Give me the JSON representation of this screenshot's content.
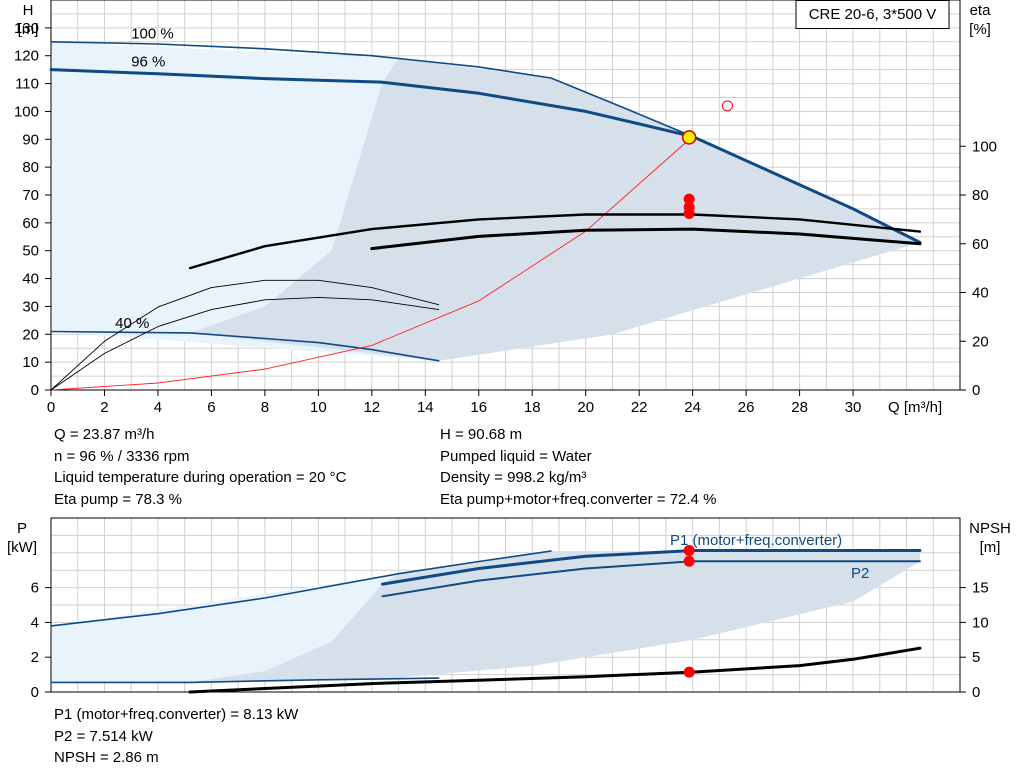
{
  "chart_data": [
    {
      "type": "line",
      "title": "CRE 20-6, 3*500 V",
      "xlabel": "Q [m³/h]",
      "ylabel": "H\n[m]",
      "y2label": "eta\n[%]",
      "xlim": [
        0,
        34
      ],
      "ylim": [
        0,
        140
      ],
      "y2lim": [
        0,
        160
      ],
      "xticks": [
        0,
        2,
        4,
        6,
        8,
        10,
        12,
        14,
        16,
        18,
        20,
        22,
        24,
        26,
        28,
        30
      ],
      "yticks": [
        0,
        10,
        20,
        30,
        40,
        50,
        60,
        70,
        80,
        90,
        100,
        110,
        120,
        130
      ],
      "y2ticks": [
        0,
        20,
        40,
        60,
        80,
        100
      ],
      "grid": true,
      "annotations": [
        {
          "text": "100 %",
          "x": 3,
          "y": 128
        },
        {
          "text": "96 %",
          "x": 3,
          "y": 118
        },
        {
          "text": "40 %",
          "x": 2.4,
          "y": 24
        }
      ],
      "operating_region": [
        [
          0,
          125
        ],
        [
          13,
          119
        ],
        [
          18.7,
          112
        ],
        [
          24,
          91
        ],
        [
          32.5,
          53
        ],
        [
          21,
          20
        ],
        [
          14.5,
          10.5
        ],
        [
          0,
          21
        ]
      ],
      "operating_region_shaded_part": [
        [
          12.4,
          110.5
        ],
        [
          13,
          119
        ],
        [
          18.7,
          112
        ],
        [
          24,
          91
        ],
        [
          32.5,
          53
        ],
        [
          21,
          20
        ],
        [
          14.5,
          10.5
        ],
        [
          5.2,
          20.5
        ],
        [
          8,
          30
        ],
        [
          10.5,
          50
        ]
      ],
      "series": [
        {
          "name": "",
          "role": "max-speed-head",
          "axis": "H",
          "x": [
            0,
            4,
            8,
            12,
            13,
            16,
            18.7,
            21,
            24,
            27,
            30,
            32.5
          ],
          "y": [
            125,
            124.2,
            122.5,
            120,
            119,
            116,
            112,
            103,
            91,
            78,
            65,
            53
          ]
        },
        {
          "name": "",
          "role": "96-speed-head",
          "axis": "H",
          "x": [
            0,
            4,
            8,
            12.4,
            16,
            20,
            24,
            27,
            30,
            32.5
          ],
          "y": [
            115,
            113.5,
            111.8,
            110.5,
            106.5,
            100,
            91,
            78,
            65,
            53
          ]
        },
        {
          "name": "",
          "role": "min-speed-head",
          "axis": "H",
          "x": [
            0,
            5.2,
            8,
            10,
            12,
            14.5
          ],
          "y": [
            21,
            20.5,
            18.5,
            17,
            14.5,
            10.5
          ]
        },
        {
          "name": "",
          "role": "system-curve",
          "axis": "H",
          "x": [
            0,
            4,
            8,
            12,
            16,
            20,
            24
          ],
          "y": [
            0,
            2.5,
            7.5,
            16,
            32,
            57,
            91
          ]
        },
        {
          "name": "",
          "role": "eta-pump",
          "axis": "eta",
          "x": [
            5.2,
            8,
            12,
            16,
            20,
            24,
            28,
            32.5
          ],
          "y": [
            50,
            59,
            66,
            70,
            72,
            72,
            70,
            65
          ]
        },
        {
          "name": "",
          "role": "eta-total",
          "axis": "eta",
          "x": [
            12,
            16,
            20,
            24,
            28,
            32.5
          ],
          "y": [
            58,
            63,
            65.5,
            66,
            64,
            60
          ]
        },
        {
          "name": "",
          "role": "eta-min-speed",
          "axis": "eta",
          "x": [
            0,
            2,
            4,
            6,
            8,
            10,
            12,
            14.5
          ],
          "y": [
            0,
            15,
            26,
            33,
            37,
            38,
            37,
            33
          ]
        },
        {
          "name": "",
          "role": "eta-low-speed",
          "axis": "eta",
          "x": [
            0,
            2,
            4,
            6,
            8,
            10,
            12,
            14.5
          ],
          "y": [
            0,
            20,
            34,
            42,
            45,
            45,
            42,
            35
          ]
        }
      ],
      "operating_point": {
        "x": 23.87,
        "y": 90.68
      },
      "operating_point_eta": [
        {
          "x": 23.87,
          "y": 78.3
        },
        {
          "x": 23.87,
          "y": 75
        },
        {
          "x": 23.87,
          "y": 72.4
        }
      ],
      "reference_marker": {
        "x": 25.3,
        "y": 102
      }
    },
    {
      "type": "line",
      "xlim": [
        0,
        34
      ],
      "ylim": [
        0,
        10
      ],
      "y2lim": [
        0,
        25
      ],
      "ylabel": "P\n[kW]",
      "y2label": "NPSH\n[m]",
      "yticks": [
        0,
        2,
        4,
        6
      ],
      "y2ticks": [
        0,
        5,
        10,
        15
      ],
      "grid": true,
      "operating_region": [
        [
          0,
          3.8
        ],
        [
          13,
          6.8
        ],
        [
          18.7,
          8.1
        ],
        [
          32.5,
          8.1
        ],
        [
          32.5,
          7.5
        ],
        [
          30,
          5.2
        ],
        [
          24,
          3
        ],
        [
          18,
          1.5
        ],
        [
          12,
          0.7
        ],
        [
          0,
          0.5
        ]
      ],
      "operating_region_shaded_part": [
        [
          12.4,
          6.2
        ],
        [
          13,
          6.8
        ],
        [
          18.7,
          8.1
        ],
        [
          32.5,
          8.1
        ],
        [
          32.5,
          7.5
        ],
        [
          30,
          5.2
        ],
        [
          24,
          3
        ],
        [
          18,
          1.5
        ],
        [
          12,
          0.7
        ],
        [
          5.2,
          0.55
        ],
        [
          8,
          1.2
        ],
        [
          10.5,
          2.9
        ]
      ],
      "series": [
        {
          "name": "P1 (motor+freq.converter)",
          "axis": "P",
          "x": [
            12.4,
            16,
            20,
            24,
            28,
            32.5
          ],
          "y": [
            6.2,
            7.1,
            7.8,
            8.13,
            8.13,
            8.13
          ]
        },
        {
          "name": "P2",
          "axis": "P",
          "x": [
            12.4,
            16,
            20,
            24,
            28,
            32.5
          ],
          "y": [
            5.5,
            6.4,
            7.1,
            7.514,
            7.514,
            7.514
          ]
        },
        {
          "name": "",
          "role": "P1-max-speed",
          "axis": "P",
          "x": [
            0,
            4,
            8,
            13,
            16,
            18.7
          ],
          "y": [
            3.8,
            4.5,
            5.4,
            6.8,
            7.5,
            8.1
          ]
        },
        {
          "name": "",
          "role": "P-min-speed",
          "axis": "P",
          "x": [
            0,
            5.2,
            10,
            14.5
          ],
          "y": [
            0.55,
            0.55,
            0.7,
            0.8
          ]
        },
        {
          "name": "",
          "role": "NPSH",
          "axis": "NPSH",
          "x": [
            5.2,
            12,
            16,
            20,
            24,
            28,
            30,
            32.5
          ],
          "y": [
            0,
            1.2,
            1.7,
            2.2,
            2.86,
            3.8,
            4.7,
            6.3
          ]
        }
      ],
      "operating_points": [
        {
          "x": 23.87,
          "y": 8.13
        },
        {
          "x": 23.87,
          "y": 7.514
        }
      ],
      "operating_point_npsh": {
        "x": 23.87,
        "y": 2.86
      }
    }
  ],
  "info": {
    "left": [
      "Q = 23.87 m³/h",
      "n = 96 % / 3336 rpm",
      "Liquid temperature during operation = 20 °C",
      "Eta pump = 78.3 %"
    ],
    "right": [
      "H = 90.68 m",
      "Pumped liquid = Water",
      "Density = 998.2 kg/m³",
      "Eta pump+motor+freq.converter = 72.4 %"
    ],
    "bottom": [
      "P1 (motor+freq.converter) = 8.13 kW",
      "P2 = 7.514 kW",
      "NPSH = 2.86 m"
    ]
  },
  "colors": {
    "blue": "#0f4a85",
    "region": "#d6e0ea",
    "region_light": "#e9f3fb",
    "grid": "#d0d0d0",
    "marker": "#ff0000",
    "op_fill": "#ffee00",
    "curve": "#000000",
    "system": "#ff2020"
  }
}
